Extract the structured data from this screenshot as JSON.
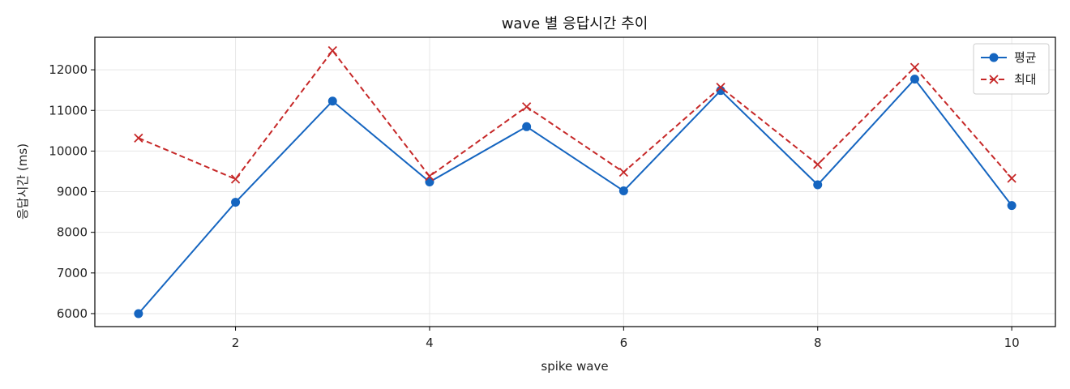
{
  "chart_data": {
    "type": "line",
    "title": "wave 별 응답시간 추이",
    "xlabel": "spike wave",
    "ylabel": "응답시간 (ms)",
    "x": [
      1,
      2,
      3,
      4,
      5,
      6,
      7,
      8,
      9,
      10
    ],
    "xlim": [
      0.55,
      10.45
    ],
    "ylim": [
      5680,
      12800
    ],
    "xticks": [
      2,
      4,
      6,
      8,
      10
    ],
    "yticks": [
      6000,
      7000,
      8000,
      9000,
      10000,
      11000,
      12000
    ],
    "grid": true,
    "legend_position": "top-right",
    "series": [
      {
        "name": "평균",
        "values": [
          6000,
          8740,
          11230,
          9240,
          10600,
          9020,
          11490,
          9170,
          11770,
          8660
        ],
        "color": "#1565c0",
        "marker": "circle",
        "linestyle": "solid"
      },
      {
        "name": "최대",
        "values": [
          10320,
          9310,
          12470,
          9380,
          11090,
          9480,
          11570,
          9670,
          12060,
          9330
        ],
        "color": "#c62828",
        "marker": "x",
        "linestyle": "dashed"
      }
    ]
  }
}
